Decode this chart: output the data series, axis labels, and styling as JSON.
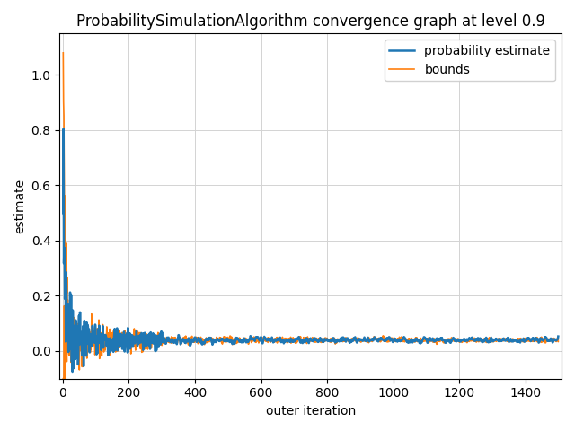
{
  "title": "ProbabilitySimulationAlgorithm convergence graph at level 0.9",
  "xlabel": "outer iteration",
  "ylabel": "estimate",
  "xlim": [
    -10,
    1510
  ],
  "ylim": [
    -0.1,
    1.15
  ],
  "legend_labels": [
    "probability estimate",
    "bounds"
  ],
  "blue_color": "#1f77b4",
  "orange_color": "#ff7f0e",
  "convergence_value": 0.04,
  "n_points": 1500,
  "xticks": [
    0,
    200,
    400,
    600,
    800,
    1000,
    1200,
    1400
  ],
  "yticks": [
    0.0,
    0.2,
    0.4,
    0.6,
    0.8,
    1.0
  ],
  "grid": true,
  "figsize": [
    6.4,
    4.8
  ],
  "dpi": 100
}
